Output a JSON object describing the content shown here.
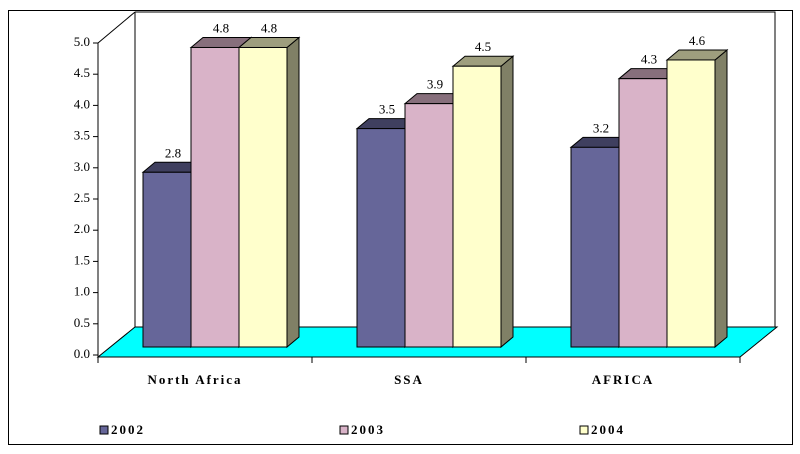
{
  "chart_data": {
    "type": "bar3d",
    "categories": [
      "North Africa",
      "SSA",
      "AFRICA"
    ],
    "series": [
      {
        "name": "2002",
        "color": "#666699",
        "values": [
          2.8,
          3.5,
          3.2
        ]
      },
      {
        "name": "2003",
        "color": "#d9b3c8",
        "values": [
          4.8,
          3.9,
          4.3
        ]
      },
      {
        "name": "2004",
        "color": "#ffffcc",
        "values": [
          4.8,
          4.5,
          4.6
        ]
      }
    ],
    "ylim": [
      0,
      5
    ],
    "yticks": [
      {
        "value": 0,
        "label": "0.0"
      },
      {
        "value": 0.5,
        "label": "0.5"
      },
      {
        "value": 1,
        "label": "1.0"
      },
      {
        "value": 1.5,
        "label": "1.5"
      },
      {
        "value": 2,
        "label": "2.0"
      },
      {
        "value": 2.5,
        "label": "2.5"
      },
      {
        "value": 3,
        "label": "3.0"
      },
      {
        "value": 3.5,
        "label": "3.5"
      },
      {
        "value": 4,
        "label": "4.0"
      },
      {
        "value": 4.5,
        "label": "4.5"
      },
      {
        "value": 5,
        "label": "5.0"
      }
    ],
    "floor_color": "#00ffff",
    "legend": "bottom"
  }
}
